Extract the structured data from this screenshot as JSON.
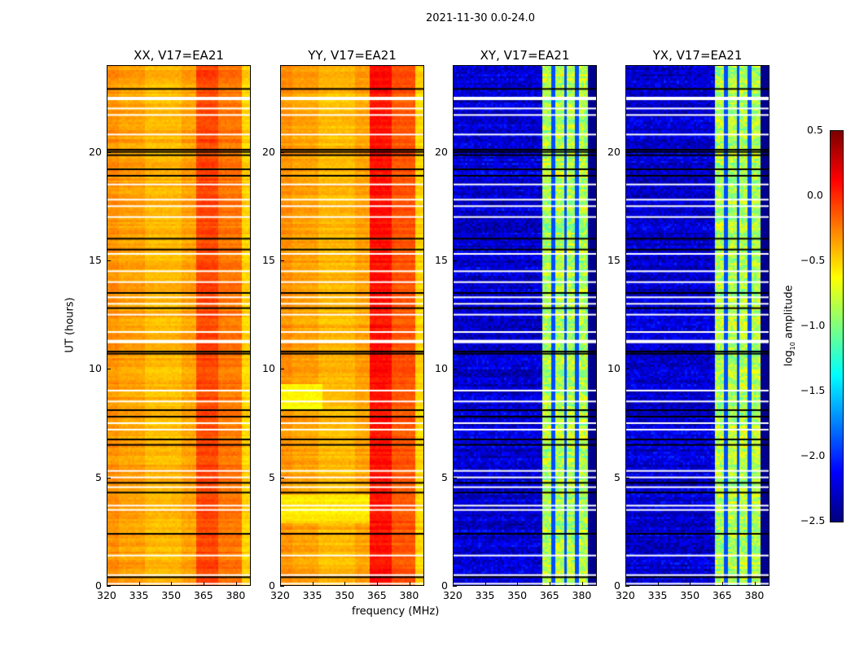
{
  "suptitle": "2021-11-30 0.0-24.0",
  "xlabel": "frequency (MHz)",
  "ylabel": "UT (hours)",
  "colorbar": {
    "label": "log10 amplitude",
    "label_main": "log",
    "label_sub": "10",
    "label_rest": " amplitude",
    "ticks": [
      "0.5",
      "0.0",
      "−0.5",
      "−1.0",
      "−1.5",
      "−2.0",
      "−2.5"
    ],
    "range": [
      -2.5,
      0.5
    ],
    "colormap": "jet"
  },
  "chart_data": {
    "type": "heatmap",
    "title": "2021-11-30 0.0-24.0",
    "xlabel": "frequency (MHz)",
    "ylabel": "UT (hours)",
    "xlim": [
      320,
      387
    ],
    "ylim": [
      0,
      24
    ],
    "xticks": [
      "320",
      "335",
      "350",
      "365",
      "380"
    ],
    "yticks": [
      "0",
      "5",
      "10",
      "15",
      "20"
    ],
    "zlim": [
      -2.5,
      0.5
    ],
    "flagged_white_hours": [
      0.1,
      0.5,
      1.4,
      3.5,
      3.7,
      4.55,
      5.0,
      5.3,
      7.2,
      7.5,
      8.5,
      9.0,
      11.3,
      11.7,
      12.5,
      13.0,
      13.3,
      14.0,
      14.5,
      15.3,
      17.0,
      17.5,
      17.8,
      18.5,
      20.8,
      21.7,
      22.0,
      22.5
    ],
    "gap_black_hours": [
      0.4,
      2.4,
      4.3,
      4.75,
      6.5,
      6.75,
      7.8,
      8.1,
      10.7,
      10.8,
      12.8,
      13.5,
      15.5,
      16.0,
      18.9,
      19.2,
      19.85,
      20.0,
      20.1,
      22.9
    ],
    "panels": [
      {
        "title": "XX, V17=EA21",
        "typical_log_amp": {
          "320-362 MHz": -0.35,
          "362-372 MHz": -0.05,
          "372-387 MHz": -0.25
        }
      },
      {
        "title": "YY, V17=EA21",
        "typical_log_amp": {
          "320-362 MHz": -0.35,
          "362-372 MHz": 0.1,
          "372-387 MHz": -0.15
        }
      },
      {
        "title": "XY, V17=EA21",
        "typical_log_amp": {
          "320-362 MHz": -2.2,
          "362-383 MHz": -0.85,
          "383-387 MHz": -2.4
        }
      },
      {
        "title": "YX, V17=EA21",
        "typical_log_amp": {
          "320-362 MHz": -2.2,
          "362-383 MHz": -0.85,
          "383-387 MHz": -2.4
        }
      }
    ]
  }
}
